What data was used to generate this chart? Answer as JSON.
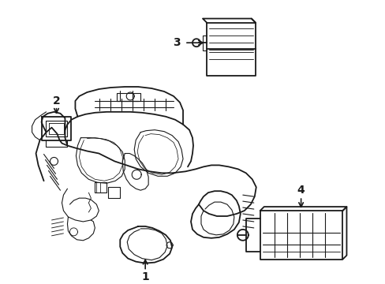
{
  "background_color": "#ffffff",
  "line_color": "#1a1a1a",
  "lw_main": 1.3,
  "lw_detail": 0.8,
  "figsize": [
    4.89,
    3.6
  ],
  "dpi": 100
}
